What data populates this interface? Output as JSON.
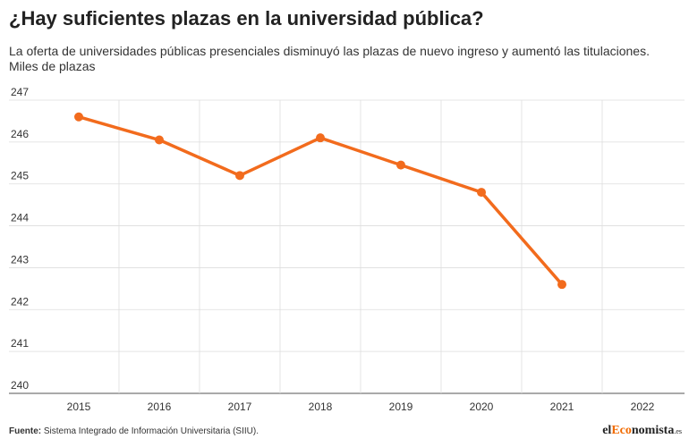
{
  "title": "¿Hay suficientes plazas en la universidad pública?",
  "subtitle": "La oferta de universidades públicas presenciales disminuyó las plazas de nuevo ingreso y aumentó las titulaciones.",
  "unit_label": "Miles de plazas",
  "footer": {
    "source_label": "Fuente:",
    "source_text": " Sistema Integrado de Información Universitaria (SIIU)."
  },
  "logo": {
    "part1": "el",
    "part2": "Eco",
    "part3": "nomista",
    "part4": ".es"
  },
  "colors": {
    "line": "#f26b1d",
    "grid": "#dddddd"
  },
  "chart_data": {
    "type": "line",
    "title": "¿Hay suficientes plazas en la universidad pública?",
    "ylabel": "Miles de plazas",
    "categories": [
      "2015",
      "2016",
      "2017",
      "2018",
      "2019",
      "2020",
      "2021",
      "2022"
    ],
    "y_ticks": [
      "240",
      "241",
      "242",
      "243",
      "244",
      "245",
      "246",
      "247"
    ],
    "ylim": [
      240,
      247
    ],
    "grid": true,
    "series": [
      {
        "values": [
          246.6,
          246.05,
          245.2,
          246.1,
          245.45,
          244.8,
          242.6,
          null
        ]
      }
    ]
  }
}
